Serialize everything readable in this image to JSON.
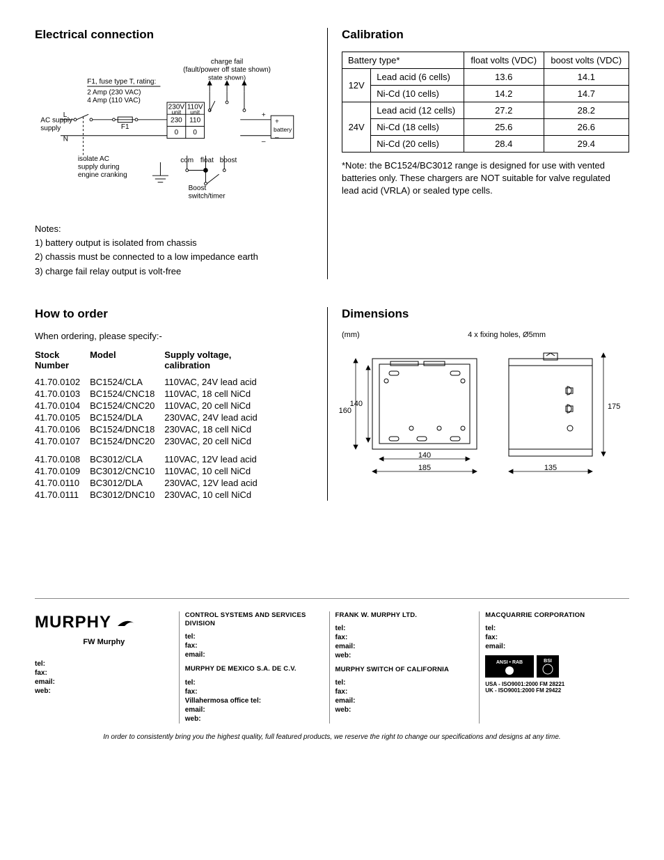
{
  "sections": {
    "electrical": {
      "title": "Electrical connection",
      "diagram": {
        "charge_fail_title": "charge fail",
        "charge_fail_sub": "(fault/power off state shown)",
        "fuse_label": "F1, fuse type T, rating:",
        "fuse_rating_1": "2 Amp (230 VAC)",
        "fuse_rating_2": "4 Amp (110 VAC)",
        "unit_230": "230V unit",
        "unit_110": "110V unit",
        "v230": "230",
        "v110": "110",
        "zero": "0",
        "L": "L",
        "N": "N",
        "ac_supply": "AC supply",
        "f1": "F1",
        "plus": "+",
        "minus": "–",
        "battery": "battery",
        "isolate": "isolate AC supply during engine cranking",
        "com": "com",
        "float": "float",
        "boost": "boost",
        "boost_switch": "Boost switch/timer"
      },
      "notes_title": "Notes:",
      "note1": "1) battery output is isolated from chassis",
      "note2": "2) chassis must be connected to a low impedance earth",
      "note3": "3) charge fail relay output is volt-free"
    },
    "calibration": {
      "title": "Calibration",
      "col_battery": "Battery type*",
      "col_float": "float volts (VDC)",
      "col_boost": "boost volts (VDC)",
      "v12": "12V",
      "v24": "24V",
      "rows12": [
        {
          "type": "Lead acid (6 cells)",
          "float": "13.6",
          "boost": "14.1"
        },
        {
          "type": "Ni-Cd (10 cells)",
          "float": "14.2",
          "boost": "14.7"
        }
      ],
      "rows24": [
        {
          "type": "Lead acid (12 cells)",
          "float": "27.2",
          "boost": "28.2"
        },
        {
          "type": "Ni-Cd (18 cells)",
          "float": "25.6",
          "boost": "26.6"
        },
        {
          "type": "Ni-Cd (20 cells)",
          "float": "28.4",
          "boost": "29.4"
        }
      ],
      "footnote": "*Note: the BC1524/BC3012 range is designed for use with vented batteries only. These chargers are NOT suitable for valve regulated lead acid (VRLA) or sealed type cells."
    },
    "order": {
      "title": "How to order",
      "intro": "When ordering, please specify:-",
      "col_stock": "Stock Number",
      "col_model": "Model",
      "col_supply": "Supply voltage, calibration",
      "group1": [
        {
          "sn": "41.70.0102",
          "model": "BC1524/CLA",
          "sv": "110VAC, 24V lead acid"
        },
        {
          "sn": "41.70.0103",
          "model": "BC1524/CNC18",
          "sv": "110VAC, 18 cell NiCd"
        },
        {
          "sn": "41.70.0104",
          "model": "BC1524/CNC20",
          "sv": "110VAC, 20 cell NiCd"
        },
        {
          "sn": "41.70.0105",
          "model": "BC1524/DLA",
          "sv": "230VAC, 24V lead acid"
        },
        {
          "sn": "41.70.0106",
          "model": "BC1524/DNC18",
          "sv": "230VAC, 18 cell NiCd"
        },
        {
          "sn": "41.70.0107",
          "model": "BC1524/DNC20",
          "sv": "230VAC, 20 cell NiCd"
        }
      ],
      "group2": [
        {
          "sn": "41.70.0108",
          "model": "BC3012/CLA",
          "sv": "110VAC, 12V lead acid"
        },
        {
          "sn": "41.70.0109",
          "model": "BC3012/CNC10",
          "sv": "110VAC, 10 cell NiCd"
        },
        {
          "sn": "41.70.0110",
          "model": "BC3012/DLA",
          "sv": "230VAC, 12V lead acid"
        },
        {
          "sn": "41.70.0111",
          "model": "BC3012/DNC10",
          "sv": "230VAC, 10 cell NiCd"
        }
      ]
    },
    "dimensions": {
      "title": "Dimensions",
      "unit": "(mm)",
      "fixing": "4 x fixing holes, Ø5mm",
      "h_inner": "140",
      "h_outer": "160",
      "w_inner": "140",
      "w_outer": "185",
      "h_right": "175",
      "w_right": "135",
      "box_color": "#ffffff",
      "line_color": "#000000"
    }
  },
  "footer": {
    "logo": "MURPHY",
    "company": "FW Murphy",
    "labels": {
      "tel": "tel:",
      "fax": "fax:",
      "email": "email:",
      "web": "web:",
      "villa": "Villahermosa office tel:"
    },
    "col2_title": "CONTROL SYSTEMS AND SERVICES DIVISION",
    "col2_sub": "MURPHY DE MEXICO S.A. DE C.V.",
    "col3_title": "FRANK W. MURPHY LTD.",
    "col3_sub": "MURPHY SWITCH OF CALIFORNIA",
    "col4_title": "MACQUARRIE CORPORATION",
    "iso1": "USA - ISO9001:2000 FM 28221",
    "iso2": "UK - ISO9001:2000 FM 29422",
    "disclaimer": "In order to consistently bring you the highest quality, full featured products, we reserve the right to change our specifications and designs at any time."
  }
}
